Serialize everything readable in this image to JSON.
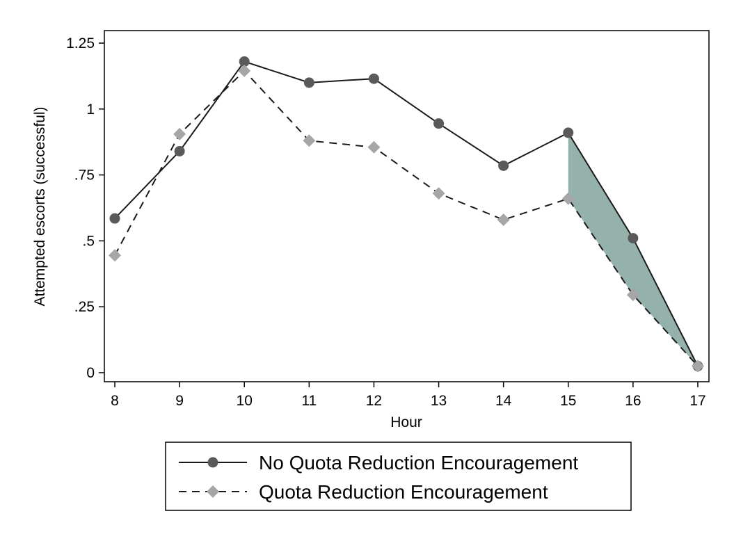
{
  "chart_data": {
    "type": "line",
    "x": [
      8,
      9,
      10,
      11,
      12,
      13,
      14,
      15,
      16,
      17
    ],
    "series": [
      {
        "name": "No Quota Reduction Encouragement",
        "values": [
          0.585,
          0.84,
          1.18,
          1.1,
          1.115,
          0.945,
          0.785,
          0.91,
          0.51,
          0.025
        ],
        "line_style": "solid",
        "marker": "circle",
        "line_color": "#1a1a1a",
        "marker_color": "#5a5a5a"
      },
      {
        "name": "Quota Reduction Encouragement",
        "values": [
          0.445,
          0.905,
          1.145,
          0.88,
          0.855,
          0.68,
          0.58,
          0.66,
          0.295,
          0.025
        ],
        "line_style": "dashed",
        "marker": "diamond",
        "line_color": "#1a1a1a",
        "marker_color": "#a6a6a6"
      }
    ],
    "shaded_region": {
      "x_from": 15,
      "x_to": 17,
      "between_series": true,
      "color": "#8fada6"
    },
    "xlabel": "Hour",
    "ylabel": "Attempted escorts (successful)",
    "xlim": [
      8,
      17
    ],
    "ylim": [
      0,
      1.25
    ],
    "x_ticks": [
      "8",
      "9",
      "10",
      "11",
      "12",
      "13",
      "14",
      "15",
      "16",
      "17"
    ],
    "y_ticks": [
      {
        "value": 0,
        "label": "0"
      },
      {
        "value": 0.25,
        "label": ".25"
      },
      {
        "value": 0.5,
        "label": ".5"
      },
      {
        "value": 0.75,
        "label": ".75"
      },
      {
        "value": 1,
        "label": "1"
      },
      {
        "value": 1.25,
        "label": "1.25"
      }
    ],
    "grid": false,
    "legend_position": "bottom"
  }
}
